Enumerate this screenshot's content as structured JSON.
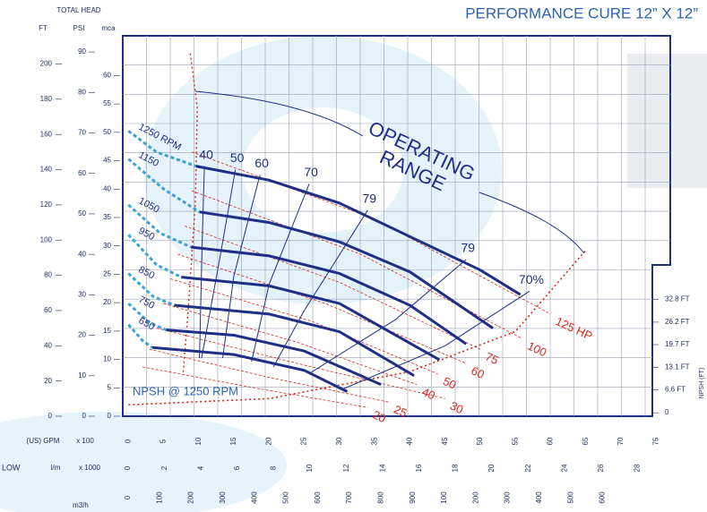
{
  "chart_data": {
    "type": "line",
    "title": "PERFORMANCE CURE 12” X 12”",
    "y_axis_title": "TOTAL HEAD",
    "side_label": "LOW",
    "grid": true,
    "operating_range": [
      "OPERATING",
      "RANGE"
    ],
    "y_axes": [
      {
        "label": "FT",
        "ylim": [
          0,
          216
        ],
        "yticks": [
          0,
          20,
          40,
          60,
          80,
          100,
          120,
          140,
          160,
          180,
          200
        ]
      },
      {
        "label": "PSI",
        "ylim": [
          0,
          94
        ],
        "yticks": [
          0,
          10,
          20,
          30,
          40,
          50,
          60,
          70,
          80,
          90
        ]
      },
      {
        "label": "mca",
        "ylim": [
          0,
          67
        ],
        "yticks": [
          0,
          5,
          10,
          15,
          20,
          25,
          30,
          35,
          40,
          45,
          50,
          55,
          60
        ]
      }
    ],
    "x_axes": [
      {
        "label": "(US) GPM",
        "unit": "x 100",
        "xlim": [
          -0.8,
          77
        ],
        "xticks": [
          0,
          5,
          10,
          15,
          20,
          25,
          30,
          35,
          40,
          45,
          50,
          55,
          60,
          65,
          70,
          75
        ]
      },
      {
        "label": "l/m",
        "unit": "x 1000",
        "xlim": [
          -0.3,
          29.8
        ],
        "xticks": [
          0,
          2,
          4,
          6,
          8,
          10,
          12,
          14,
          16,
          18,
          20,
          22,
          24,
          26,
          28
        ]
      },
      {
        "label": "m3/h",
        "xlim": [
          -17,
          1714
        ],
        "xticks": [
          0,
          100,
          200,
          300,
          400,
          500,
          600,
          700,
          800,
          900,
          {
            "value": 1000,
            "label": "100"
          },
          {
            "value": 1100,
            "label": "200"
          },
          {
            "value": 1200,
            "label": "300"
          },
          {
            "value": 1300,
            "label": "400"
          },
          {
            "value": 1400,
            "label": "500"
          },
          {
            "value": 1500,
            "label": "600"
          }
        ]
      }
    ],
    "npsh_axis": {
      "label": "NPSH (FT)",
      "ylim": [
        -1,
        109
      ],
      "yticks": [
        0,
        {
          "value": 6.6,
          "label": "6.6 FT"
        },
        {
          "value": 13.1,
          "label": "13.1 FT"
        },
        {
          "value": 19.7,
          "label": "19.7 FT"
        },
        {
          "value": 26.2,
          "label": "26.2 FT"
        },
        {
          "value": 32.8,
          "label": "32.8 FT"
        }
      ]
    },
    "series": [
      {
        "name": "1250 RPM",
        "color": "#1f2f86",
        "unstable_color": "#3aa3da",
        "unstable_x": [
          0,
          4,
          9.6
        ],
        "unstable_values": [
          162,
          150,
          142
        ],
        "x": [
          9.6,
          20,
          30,
          40,
          50,
          55.7
        ],
        "values": [
          142,
          134,
          121,
          102,
          83,
          69
        ]
      },
      {
        "name": "1150",
        "color": "#1f2f86",
        "unstable_color": "#3aa3da",
        "unstable_x": [
          0,
          5,
          10.1
        ],
        "unstable_values": [
          146,
          129,
          116
        ],
        "x": [
          10.1,
          20,
          30,
          40,
          51.8
        ],
        "values": [
          116,
          110,
          99,
          82,
          50
        ]
      },
      {
        "name": "1050",
        "color": "#1f2f86",
        "unstable_color": "#3aa3da",
        "unstable_x": [
          0,
          4.5,
          8.9
        ],
        "unstable_values": [
          120,
          104,
          96
        ],
        "x": [
          8.9,
          20,
          30,
          40,
          48
        ],
        "values": [
          96,
          91,
          81,
          63,
          41
        ]
      },
      {
        "name": "950",
        "color": "#1f2f86",
        "unstable_color": "#3aa3da",
        "unstable_x": [
          0,
          4,
          7.5
        ],
        "unstable_values": [
          103,
          86,
          79
        ],
        "x": [
          7.5,
          20,
          30,
          44.2
        ],
        "values": [
          79,
          74,
          64,
          32
        ]
      },
      {
        "name": "850",
        "color": "#1f2f86",
        "unstable_color": "#3aa3da",
        "unstable_x": [
          0,
          3.5,
          6.5
        ],
        "unstable_values": [
          81,
          68,
          63
        ],
        "x": [
          6.5,
          20,
          30,
          40.6
        ],
        "values": [
          63,
          58,
          48,
          23
        ]
      },
      {
        "name": "750",
        "color": "#1f2f86",
        "unstable_color": "#3aa3da",
        "unstable_x": [
          0,
          3,
          5.4
        ],
        "unstable_values": [
          64,
          53,
          49
        ],
        "x": [
          5.4,
          15,
          25,
          35.9
        ],
        "values": [
          49,
          46,
          37,
          18
        ]
      },
      {
        "name": "650",
        "color": "#1f2f86",
        "unstable_color": "#3aa3da",
        "unstable_x": [
          0,
          2,
          3.4
        ],
        "unstable_values": [
          52,
          43,
          39
        ],
        "x": [
          3.4,
          15,
          25,
          31.1
        ],
        "values": [
          39,
          35,
          26,
          14
        ]
      }
    ],
    "efficiency": [
      {
        "label": 40,
        "x": [
          10.8,
          10.5,
          10.1
        ],
        "values": [
          142,
          100,
          33
        ]
      },
      {
        "label": 50,
        "x": [
          15.2,
          13,
          10.4
        ],
        "values": [
          140,
          90,
          33
        ]
      },
      {
        "label": 60,
        "x": [
          18.7,
          15,
          13.4
        ],
        "values": [
          137,
          80,
          33
        ]
      },
      {
        "label": 70,
        "x": [
          25.7,
          20,
          17.5
        ],
        "values": [
          132,
          75,
          31
        ]
      },
      {
        "label": 79,
        "x": [
          34,
          25,
          20.6
        ],
        "values": [
          117,
          60,
          28
        ]
      },
      {
        "label": 79,
        "x": [
          48,
          38,
          26
        ],
        "values": [
          89,
          55,
          25
        ]
      },
      {
        "label": {
          "value": 70,
          "label": "70%"
        },
        "x": [
          57,
          45,
          30.2
        ],
        "values": [
          71,
          40,
          15
        ]
      }
    ],
    "power": [
      {
        "label": {
          "value": 125,
          "label": "125 HP"
        },
        "x": [
          9,
          35,
          60
        ],
        "values": [
          150,
          112,
          58
        ]
      },
      {
        "label": 100,
        "x": [
          9,
          33,
          56
        ],
        "values": [
          128,
          92,
          44
        ]
      },
      {
        "label": 75,
        "x": [
          8,
          30,
          50
        ],
        "values": [
          108,
          76,
          38
        ]
      },
      {
        "label": 60,
        "x": [
          7,
          28,
          48
        ],
        "values": [
          92,
          64,
          30
        ]
      },
      {
        "label": 50,
        "x": [
          6,
          26,
          44
        ],
        "values": [
          78,
          54,
          24
        ]
      },
      {
        "label": 40,
        "x": [
          5,
          24,
          41
        ],
        "values": [
          64,
          42,
          18
        ]
      },
      {
        "label": 30,
        "x": [
          4,
          24,
          45
        ],
        "values": [
          50,
          30,
          10
        ]
      },
      {
        "label": 25,
        "x": [
          3,
          20,
          37
        ],
        "values": [
          38,
          22,
          8
        ]
      },
      {
        "label": 20,
        "x": [
          2,
          18,
          34
        ],
        "values": [
          28,
          16,
          5
        ]
      }
    ],
    "power_color": "#d8261c",
    "min_flow": {
      "x": [
        8.8,
        9.8,
        9.5,
        8.5,
        7.8
      ],
      "values": [
        206,
        175,
        120,
        60,
        25
      ]
    },
    "npsh": {
      "label": "NPSH @ 1250 RPM",
      "color": "#d8261c",
      "x": [
        0,
        20,
        40,
        55,
        65
      ],
      "values": [
        2.3,
        4.1,
        11.9,
        23.5,
        47
      ]
    }
  }
}
